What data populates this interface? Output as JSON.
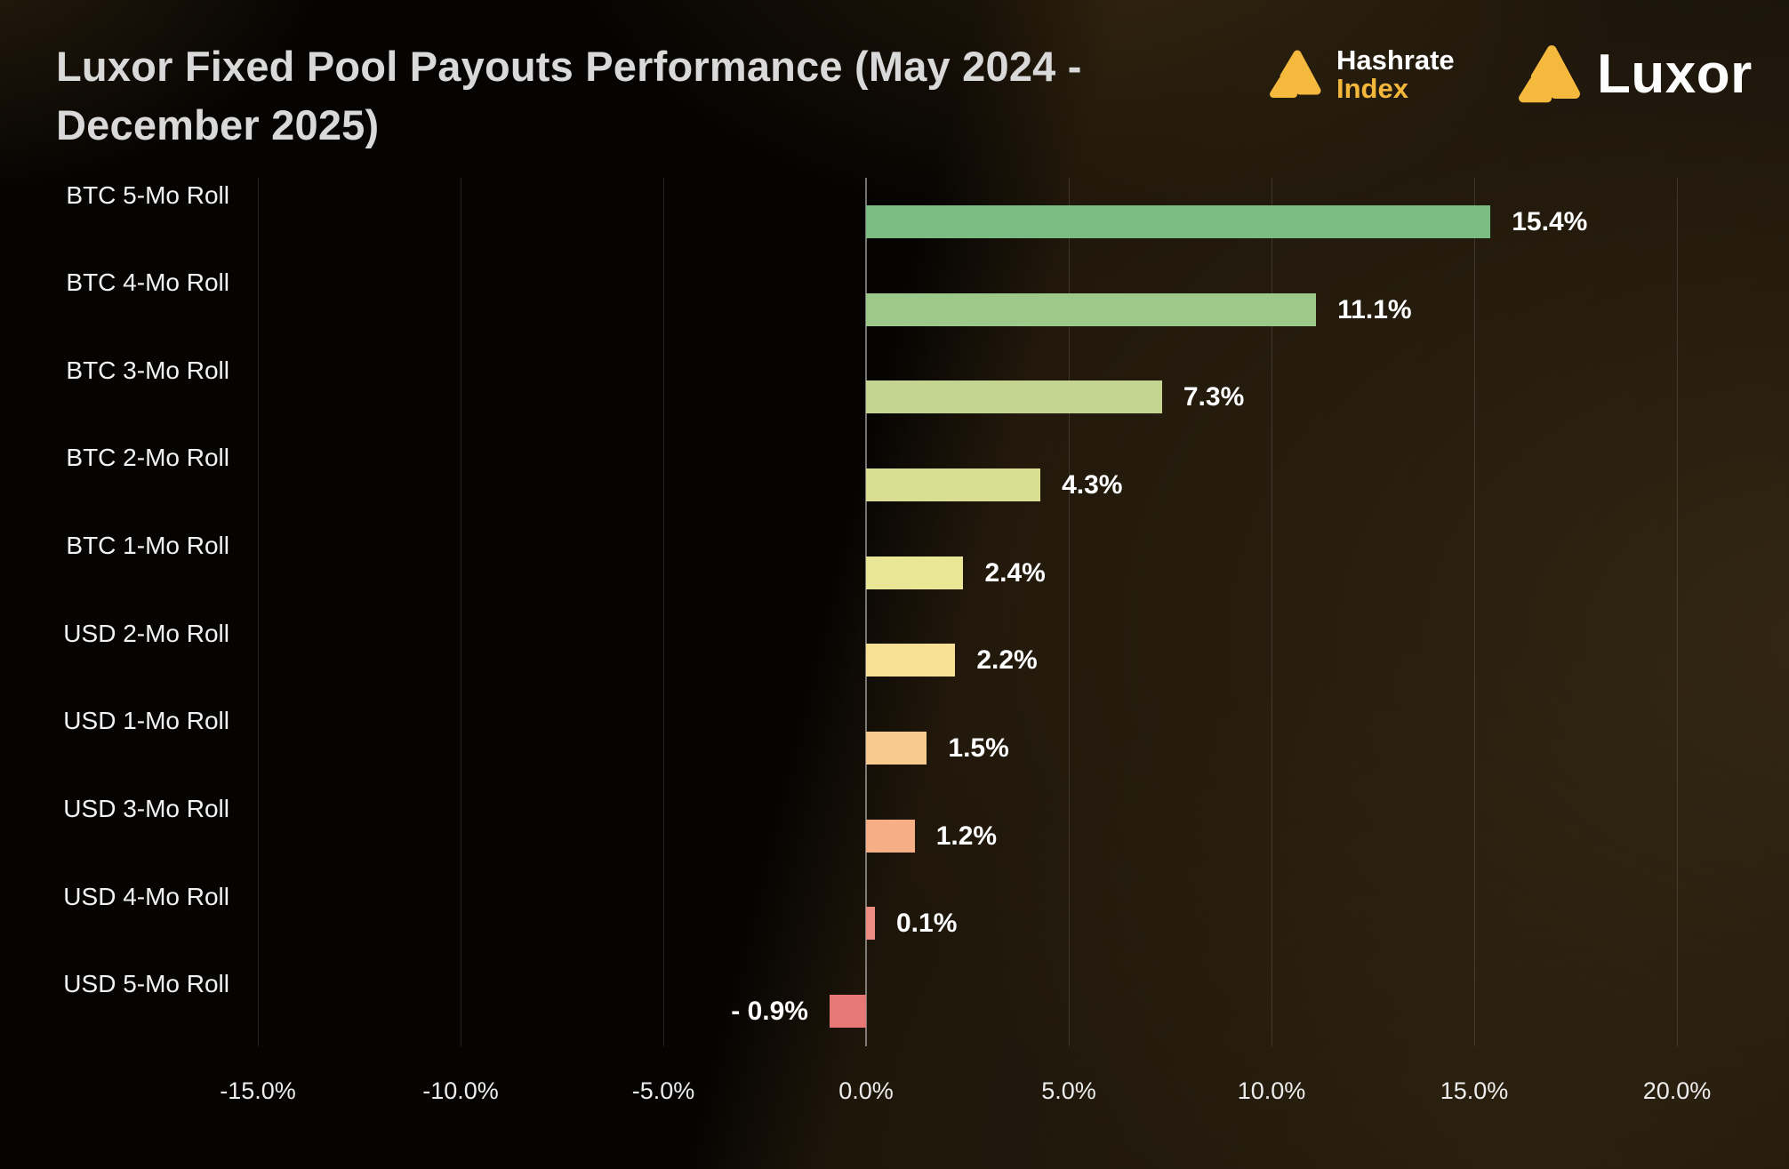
{
  "header": {
    "title_lines": [
      "Luxor Fixed Pool Payouts Performance (May 2024  -",
      "December 2025)"
    ],
    "logos": {
      "hashrate_index": {
        "line1": "Hashrate",
        "line2": "Index"
      },
      "luxor": {
        "text": "Luxor"
      }
    }
  },
  "colors": {
    "brand_gold": "#f5b93e",
    "title_text": "#d9d9d9",
    "value_label": "#ffffff",
    "axis_text": "#ededed"
  },
  "chart_data": {
    "type": "bar",
    "orientation": "horizontal",
    "title": "Luxor Fixed Pool Payouts Performance (May 2024 - December 2025)",
    "categories": [
      "BTC 5-Mo Roll",
      "BTC 4-Mo Roll",
      "BTC 3-Mo Roll",
      "BTC 2-Mo Roll",
      "BTC 1-Mo Roll",
      "USD 2-Mo Roll",
      "USD 1-Mo Roll",
      "USD 3-Mo Roll",
      "USD 4-Mo Roll",
      "USD 5-Mo Roll"
    ],
    "values": [
      15.4,
      11.1,
      7.3,
      4.3,
      2.4,
      2.2,
      1.5,
      1.2,
      0.1,
      -0.9
    ],
    "value_labels": [
      "15.4%",
      "11.1%",
      "7.3%",
      "4.3%",
      "2.4%",
      "2.2%",
      "1.5%",
      "1.2%",
      "0.1%",
      "- 0.9%"
    ],
    "bar_colors": [
      "#7bbc82",
      "#9cc989",
      "#c3d591",
      "#dade92",
      "#e9e795",
      "#f7df94",
      "#f7ca8e",
      "#f5ae85",
      "#ec8c82",
      "#e77876"
    ],
    "xlabel": "",
    "ylabel": "",
    "xlim": [
      -17.6,
      22.8
    ],
    "x_ticks": {
      "values": [
        -15,
        -10,
        -5,
        0,
        5,
        10,
        15,
        20
      ],
      "labels": [
        "-15.0%",
        "-10.0%",
        "-5.0%",
        "0.0%",
        "5.0%",
        "10.0%",
        "15.0%",
        "20.0%"
      ]
    },
    "grid": "vertical-only",
    "legend": "none",
    "value_labels_shown": true
  }
}
